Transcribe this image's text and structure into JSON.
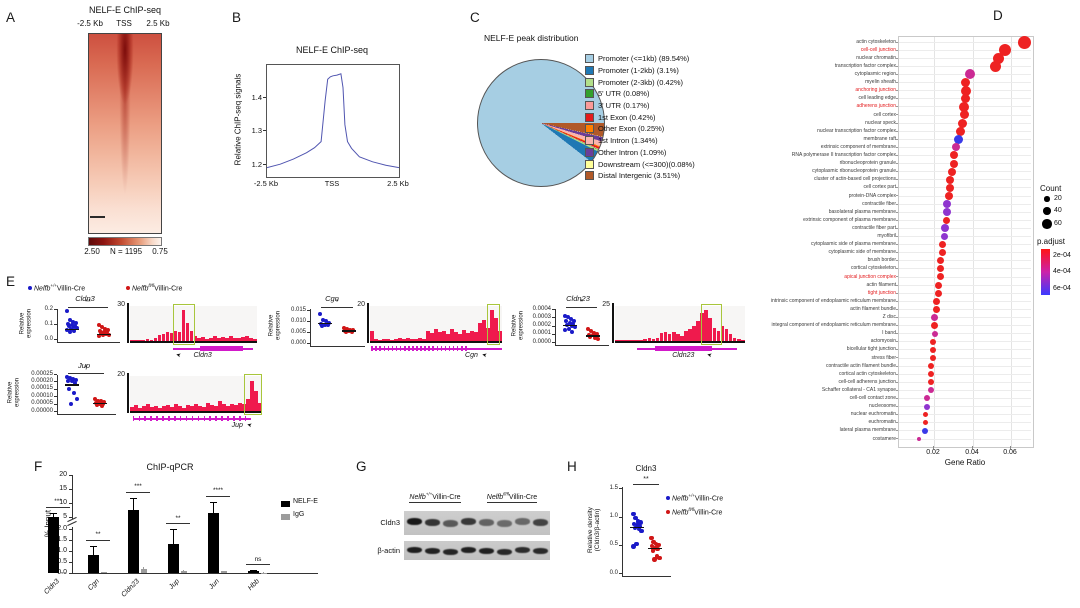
{
  "figure": {
    "panelA": {
      "label": "A",
      "title": "NELF-E ChIP-seq",
      "xleft": "-2.5 Kb",
      "xmid": "TSS",
      "xright": "2.5 Kb",
      "scale_left": "2.50",
      "scale_mid": "N = 1195",
      "scale_right": "0.75"
    },
    "panelB": {
      "label": "B",
      "title": "NELF-E ChIP-seq",
      "ylabel": "Relative ChIP-seq signals",
      "yticks": [
        "1.4",
        "1.3",
        "1.2"
      ],
      "xticks": [
        "-2.5 Kb",
        "TSS",
        "2.5 Kb"
      ]
    },
    "panelC": {
      "label": "C",
      "title": "NELF-E peak distribution"
    },
    "panelD": {
      "label": "D",
      "xlabel": "Gene Ratio",
      "xticks": [
        "0.02",
        "0.04",
        "0.06"
      ],
      "count_title": "Count",
      "count_items": [
        "20",
        "40",
        "60"
      ],
      "padj_title": "p.adjust",
      "padj_labels": [
        "2e-04",
        "4e-04",
        "6e-04"
      ]
    },
    "panelE": {
      "label": "E",
      "ylabel1": "Relative",
      "ylabel2": "expression"
    },
    "panelF": {
      "label": "F",
      "title": "ChIP-qPCR",
      "ylabel": "% Input"
    },
    "panelG": {
      "label": "G",
      "row1": "Cldn3",
      "row2": "β-actin"
    },
    "panelH": {
      "label": "H",
      "title": "Cldn3",
      "ylabel1": "Relative density",
      "ylabel2": "(Cldn3/β-actin)"
    }
  },
  "genotypes": {
    "wt": {
      "gene": "Nelfb",
      "sup": "+/+",
      "rest": "Villin-Cre",
      "color": "#1a1ac8"
    },
    "ko": {
      "gene": "Nelfb",
      "sup": "fl/fl",
      "rest": "Villin-Cre",
      "color": "#d01616"
    }
  },
  "chart_data": {
    "B_profile": {
      "type": "line",
      "color": "#5055b0",
      "ylim": [
        1.165,
        1.497
      ],
      "x": [
        -2.5,
        -2.0,
        -1.5,
        -1.0,
        -0.7,
        -0.45,
        -0.3,
        -0.2,
        -0.1,
        0,
        0.15,
        0.3,
        0.38,
        0.45,
        0.55,
        0.7,
        1.0,
        1.5,
        2.0,
        2.5
      ],
      "y": [
        1.193,
        1.203,
        1.218,
        1.237,
        1.252,
        1.27,
        1.39,
        1.455,
        1.462,
        1.465,
        1.467,
        1.471,
        1.43,
        1.32,
        1.27,
        1.25,
        1.225,
        1.21,
        1.2,
        1.193
      ]
    },
    "C_pie": {
      "type": "pie",
      "slices": [
        {
          "label": "Promoter (<=1kb) (89.54%)",
          "value": 89.54,
          "color": "#a6cee3"
        },
        {
          "label": "Promoter (1-2kb) (3.1%)",
          "value": 3.1,
          "color": "#1f78b4"
        },
        {
          "label": "Promoter (2-3kb) (0.42%)",
          "value": 0.42,
          "color": "#b2df8a"
        },
        {
          "label": "5' UTR (0.08%)",
          "value": 0.08,
          "color": "#33a02c"
        },
        {
          "label": "3' UTR (0.17%)",
          "value": 0.17,
          "color": "#fb9a99"
        },
        {
          "label": "1st Exon (0.42%)",
          "value": 0.42,
          "color": "#e31a1c"
        },
        {
          "label": "Other Exon (0.25%)",
          "value": 0.25,
          "color": "#ff7f00"
        },
        {
          "label": "1st Intron (1.34%)",
          "value": 1.34,
          "color": "#fbb4ae"
        },
        {
          "label": "Other Intron (1.09%)",
          "value": 1.09,
          "color": "#6a3d9a"
        },
        {
          "label": "Downstream (<=300)(0.08%)",
          "value": 0.08,
          "color": "#ffff99"
        },
        {
          "label": "Distal Intergenic (3.51%)",
          "value": 3.51,
          "color": "#b15928"
        }
      ]
    },
    "D_dotplot": {
      "type": "scatter",
      "xlabel": "Gene Ratio",
      "xlim": [
        0.01,
        0.07
      ],
      "columns": [
        "term",
        "gene_ratio",
        "dot_px",
        "padj_color",
        "red_label"
      ],
      "rows": [
        [
          "actin cytoskeleton",
          0.067,
          13,
          "r",
          0
        ],
        [
          "cell-cell junction",
          0.057,
          12,
          "r",
          1
        ],
        [
          "nuclear chromatin",
          0.054,
          11,
          "r",
          0
        ],
        [
          "transcription factor complex",
          0.052,
          11,
          "r",
          0
        ],
        [
          "cytoplasmic region",
          0.039,
          10,
          "m",
          0
        ],
        [
          "myelin sheath",
          0.037,
          9,
          "r",
          0
        ],
        [
          "anchoring junction",
          0.037,
          10,
          "r",
          1
        ],
        [
          "cell leading edge",
          0.037,
          9,
          "r",
          0
        ],
        [
          "adherens junction",
          0.036,
          10,
          "r",
          1
        ],
        [
          "cell cortex",
          0.036,
          9,
          "r",
          0
        ],
        [
          "nuclear speck",
          0.035,
          9,
          "r",
          0
        ],
        [
          "nuclear transcription factor complex",
          0.034,
          9,
          "r",
          0
        ],
        [
          "membrane raft",
          0.033,
          9,
          "b",
          0
        ],
        [
          "extrinsic component of membrane",
          0.032,
          8,
          "m",
          0
        ],
        [
          "RNA polymerase II transcription factor complex",
          0.031,
          8,
          "r",
          0
        ],
        [
          "ribonucleoprotein granule",
          0.031,
          8,
          "r",
          0
        ],
        [
          "cytoplasmic ribonucleoprotein granule",
          0.03,
          8,
          "r",
          0
        ],
        [
          "cluster of actin-based cell projections",
          0.029,
          8,
          "r",
          0
        ],
        [
          "cell cortex part",
          0.029,
          8,
          "r",
          0
        ],
        [
          "protein-DNA complex",
          0.028,
          8,
          "r",
          0
        ],
        [
          "contractile fiber",
          0.027,
          8,
          "p",
          0
        ],
        [
          "basolateral plasma membrane",
          0.027,
          8,
          "p",
          0
        ],
        [
          "extrinsic component of plasma membrane",
          0.027,
          7,
          "r",
          0
        ],
        [
          "contractile fiber part",
          0.026,
          8,
          "p",
          0
        ],
        [
          "myofibril",
          0.026,
          7,
          "p",
          0
        ],
        [
          "cytoplasmic side of plasma membrane",
          0.025,
          7,
          "r",
          0
        ],
        [
          "cytoplasmic side of membrane",
          0.025,
          7,
          "r",
          0
        ],
        [
          "brush border",
          0.024,
          7,
          "r",
          0
        ],
        [
          "cortical cytoskeleton",
          0.024,
          7,
          "r",
          0
        ],
        [
          "apical junction complex",
          0.024,
          7,
          "r",
          1
        ],
        [
          "actin filament",
          0.023,
          7,
          "r",
          0
        ],
        [
          "tight junction",
          0.023,
          7,
          "r",
          1
        ],
        [
          "intrinsic component of endoplasmic reticulum membrane",
          0.022,
          7,
          "r",
          0
        ],
        [
          "actin filament bundle",
          0.022,
          7,
          "r",
          0
        ],
        [
          "Z disc",
          0.021,
          7,
          "m",
          0
        ],
        [
          "integral component of endoplasmic reticulum membrane",
          0.021,
          7,
          "r",
          0
        ],
        [
          "I band",
          0.021,
          6,
          "m",
          0
        ],
        [
          "actomyosin",
          0.02,
          6,
          "r",
          0
        ],
        [
          "bicellular tight junction",
          0.02,
          6,
          "r",
          0
        ],
        [
          "stress fiber",
          0.02,
          6,
          "r",
          0
        ],
        [
          "contractile actin filament bundle",
          0.019,
          6,
          "r",
          0
        ],
        [
          "cortical actin cytoskeleton",
          0.019,
          6,
          "r",
          0
        ],
        [
          "cell-cell adherens junction",
          0.019,
          6,
          "r",
          0
        ],
        [
          "Schaffer collateral - CA1 synapse",
          0.019,
          6,
          "m",
          0
        ],
        [
          "cell-cell contact zone",
          0.017,
          6,
          "m",
          0
        ],
        [
          "nucleosome",
          0.017,
          6,
          "p",
          0
        ],
        [
          "nuclear euchromatin",
          0.016,
          5,
          "r",
          0
        ],
        [
          "euchromatin",
          0.016,
          5,
          "r",
          0
        ],
        [
          "lateral plasma membrane",
          0.016,
          6,
          "b",
          0
        ],
        [
          "costamere",
          0.013,
          4,
          "m",
          0
        ]
      ]
    },
    "E_expression": {
      "type": "scatter",
      "plots": [
        {
          "gene": "Cldn3",
          "sig": "**",
          "track_max": "30",
          "yticks": [
            [
              "0.2",
              0.2
            ],
            [
              "0.1",
              0.1
            ],
            [
              "0.0",
              0
            ]
          ],
          "blue": [
            0.19,
            0.13,
            0.115,
            0.105,
            0.1,
            0.095,
            0.09,
            0.085,
            0.08,
            0.075,
            0.07,
            0.06,
            0.055,
            0.05
          ],
          "red": [
            0.095,
            0.08,
            0.07,
            0.06,
            0.055,
            0.05,
            0.045,
            0.04,
            0.035,
            0.03,
            0.025,
            0.02
          ],
          "mean_blue": 0.068,
          "mean_red": 0.034,
          "bins": [
            0.03,
            0.02,
            0.04,
            0.03,
            0.05,
            0.04,
            0.08,
            0.18,
            0.22,
            0.28,
            0.24,
            0.3,
            0.26,
            0.95,
            0.55,
            0.3,
            0.15,
            0.1,
            0.12,
            0.07,
            0.1,
            0.14,
            0.08,
            0.12,
            0.09,
            0.15,
            0.1,
            0.08,
            0.12,
            0.16,
            0.1,
            0.06
          ]
        },
        {
          "gene": "Cgn",
          "sig": "*",
          "track_max": "20",
          "yticks": [
            [
              "0.015",
              0.015
            ],
            [
              "0.010",
              0.01
            ],
            [
              "0.005",
              0.005
            ],
            [
              "0.000",
              0
            ]
          ],
          "blue": [
            0.013,
            0.0105,
            0.0098,
            0.0092,
            0.0088,
            0.0084,
            0.008,
            0.0076
          ],
          "red": [
            0.0066,
            0.0063,
            0.006,
            0.0058,
            0.0056,
            0.0053,
            0.005,
            0.0048
          ],
          "mean_blue": 0.0092,
          "mean_red": 0.0057,
          "bins": [
            0.3,
            0.05,
            0.04,
            0.06,
            0.05,
            0.04,
            0.06,
            0.08,
            0.05,
            0.1,
            0.07,
            0.05,
            0.08,
            0.06,
            0.3,
            0.25,
            0.35,
            0.28,
            0.3,
            0.22,
            0.35,
            0.28,
            0.2,
            0.32,
            0.24,
            0.3,
            0.26,
            0.55,
            0.65,
            0.4,
            0.95,
            0.7,
            0.3
          ]
        },
        {
          "gene": "Cldn23",
          "sig": "*",
          "track_max": "25",
          "yticks": [
            [
              "0.0004",
              0.0004
            ],
            [
              "0.0003",
              0.0003
            ],
            [
              "0.0002",
              0.0002
            ],
            [
              "0.0001",
              0.0001
            ],
            [
              "0.0000",
              0
            ]
          ],
          "blue": [
            0.00032,
            0.0003,
            0.00028,
            0.00026,
            0.00025,
            0.00023,
            0.00022,
            0.00021,
            0.0002,
            0.00018,
            0.00016,
            0.00014,
            0.00012
          ],
          "red": [
            0.00016,
            0.00013,
            0.00011,
            0.0001,
            9e-05,
            8e-05,
            7e-05,
            6e-05,
            5e-05,
            4e-05
          ],
          "mean_blue": 0.00021,
          "mean_red": 8e-05,
          "bins": [
            0.02,
            0.02,
            0.03,
            0.02,
            0.03,
            0.04,
            0.03,
            0.05,
            0.08,
            0.06,
            0.1,
            0.25,
            0.28,
            0.22,
            0.26,
            0.2,
            0.15,
            0.3,
            0.35,
            0.45,
            0.6,
            0.85,
            0.95,
            0.7,
            0.4,
            0.3,
            0.45,
            0.35,
            0.2,
            0.1,
            0.06,
            0.04
          ]
        },
        {
          "gene": "Jup",
          "sig": "*",
          "track_max": "20",
          "yticks": [
            [
              "0.00025",
              0.00025
            ],
            [
              "0.00020",
              0.0002
            ],
            [
              "0.00015",
              0.00015
            ],
            [
              "0.00010",
              0.0001
            ],
            [
              "0.00005",
              5e-05
            ],
            [
              "0.00000",
              0
            ]
          ],
          "blue": [
            0.00023,
            0.00022,
            0.000215,
            0.00021,
            0.000205,
            0.0002,
            0.00019,
            0.00015,
            0.00012,
            8e-05,
            5e-05
          ],
          "red": [
            8e-05,
            7e-05,
            6.5e-05,
            6e-05,
            5.5e-05,
            5e-05,
            4.5e-05,
            4e-05,
            3.5e-05
          ],
          "mean_blue": 0.00018,
          "mean_red": 5.5e-05,
          "bins": [
            0.12,
            0.18,
            0.1,
            0.15,
            0.2,
            0.12,
            0.16,
            0.1,
            0.14,
            0.18,
            0.12,
            0.2,
            0.15,
            0.1,
            0.18,
            0.14,
            0.22,
            0.16,
            0.12,
            0.25,
            0.18,
            0.14,
            0.3,
            0.2,
            0.16,
            0.22,
            0.18,
            0.25,
            0.2,
            0.35,
            0.9,
            0.6,
            0.25
          ]
        }
      ]
    },
    "F_chipqpcr": {
      "type": "bar",
      "title": "ChIP-qPCR",
      "ylabel": "% Input",
      "ylim": [
        0,
        20
      ],
      "ybreak": [
        2,
        5
      ],
      "yticks_bottom": [
        "0.0",
        "0.5",
        "1.0",
        "1.5",
        "2.0"
      ],
      "yticks_top": [
        "5",
        "10",
        "15",
        "20"
      ],
      "categories": [
        "Cldn3",
        "Cgn",
        "Cldn23",
        "Jup",
        "Jun",
        "Hbb"
      ],
      "series": [
        {
          "name": "NELF-E",
          "color": "#000000",
          "values": [
            5.0,
            0.8,
            7.5,
            1.3,
            6.5,
            0.08
          ],
          "errors": [
            1.5,
            0.45,
            4.3,
            0.7,
            4.0,
            0.05
          ]
        },
        {
          "name": "IgG",
          "color": "#9c9c9c",
          "values": [
            0.05,
            0.03,
            0.2,
            0.1,
            0.07,
            0.02
          ],
          "errors": [
            0.02,
            0.01,
            0.06,
            0.04,
            0.02,
            0.01
          ]
        }
      ],
      "sig": [
        "***",
        "**",
        "***",
        "**",
        "****",
        "ns"
      ]
    },
    "G_blot": {
      "cldn3_bands": [
        0.95,
        0.8,
        0.6,
        0.78,
        0.55,
        0.5,
        0.52,
        0.72
      ],
      "actin_bands": [
        0.92,
        0.9,
        0.88,
        0.9,
        0.9,
        0.86,
        0.84,
        0.86
      ]
    },
    "H_density": {
      "type": "scatter",
      "sig": "**",
      "yticks": [
        [
          "1.5",
          1.5
        ],
        [
          "1.0",
          1.0
        ],
        [
          "0.5",
          0.5
        ],
        [
          "0.0",
          0
        ]
      ],
      "blue": [
        1.05,
        0.98,
        0.92,
        0.9,
        0.87,
        0.85,
        0.83,
        0.8,
        0.78,
        0.75,
        0.52,
        0.47
      ],
      "red": [
        0.62,
        0.55,
        0.52,
        0.5,
        0.48,
        0.45,
        0.43,
        0.4,
        0.3,
        0.27,
        0.24
      ],
      "mean_blue": 0.82,
      "mean_red": 0.44
    }
  }
}
